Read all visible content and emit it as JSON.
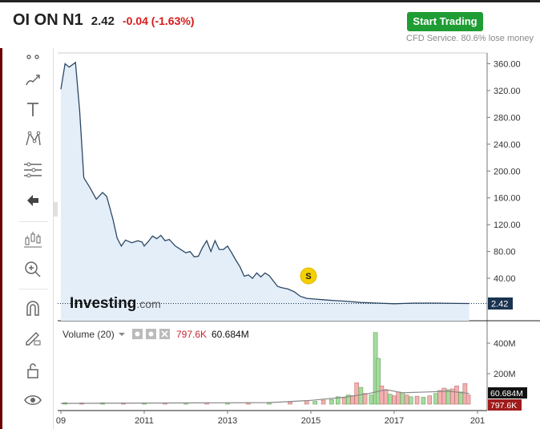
{
  "header": {
    "symbol": "OI ON N1",
    "price": "2.42",
    "change": "-0.04 (-1.63%)",
    "cta_label": "Start Trading",
    "disclaimer": "CFD Service. 80.6% lose money"
  },
  "toolbar": {
    "tools": [
      "crosshair-icon",
      "brush-icon",
      "text-icon",
      "pattern-icon",
      "fibonacci-icon",
      "back-arrow-icon",
      "candles-icon",
      "zoom-in-icon",
      "magnet-icon",
      "lock-pen-icon",
      "unlock-icon",
      "eye-icon"
    ]
  },
  "colors": {
    "line": "#2b4763",
    "area": "#e3eef9",
    "up": "#a7dba0",
    "down": "#f0b2b2",
    "accent": "#1f9d34",
    "neg": "#d91a1a"
  },
  "chart_data": {
    "type": "area",
    "logo": "Investing.com",
    "marker_label": "S",
    "last_price_label": "2.42",
    "y_ticks": [
      "360.00",
      "320.00",
      "280.00",
      "240.00",
      "200.00",
      "160.00",
      "120.00",
      "80.00",
      "40.00"
    ],
    "ylim": [
      0,
      370
    ],
    "x_ticks": [
      "09",
      "2011",
      "2013",
      "2015",
      "2017",
      "201"
    ],
    "price_series": {
      "x": [
        2009.0,
        2009.1,
        2009.2,
        2009.35,
        2009.45,
        2009.55,
        2009.7,
        2009.85,
        2010.0,
        2010.1,
        2010.25,
        2010.35,
        2010.45,
        2010.55,
        2010.7,
        2010.85,
        2010.95,
        2011.0,
        2011.1,
        2011.2,
        2011.3,
        2011.4,
        2011.5,
        2011.6,
        2011.75,
        2011.9,
        2012.0,
        2012.1,
        2012.2,
        2012.3,
        2012.4,
        2012.5,
        2012.6,
        2012.7,
        2012.8,
        2012.9,
        2013.0,
        2013.1,
        2013.2,
        2013.3,
        2013.4,
        2013.5,
        2013.6,
        2013.7,
        2013.8,
        2013.9,
        2014.0,
        2014.1,
        2014.2,
        2014.3,
        2014.45,
        2014.6,
        2014.75,
        2014.9,
        2015.1,
        2015.3,
        2015.5,
        2015.8,
        2016.2,
        2016.6,
        2017.0,
        2017.5,
        2018.0,
        2018.5,
        2018.8
      ],
      "values": [
        322,
        360,
        355,
        362,
        290,
        190,
        175,
        158,
        168,
        162,
        128,
        100,
        88,
        97,
        93,
        96,
        94,
        88,
        95,
        103,
        99,
        104,
        96,
        98,
        88,
        82,
        78,
        80,
        72,
        73,
        86,
        96,
        80,
        96,
        83,
        83,
        88,
        78,
        67,
        57,
        43,
        45,
        40,
        48,
        42,
        48,
        44,
        36,
        28,
        26,
        24,
        20,
        13,
        10,
        9,
        8,
        7,
        6,
        4,
        3,
        2,
        3,
        3,
        2.5,
        2.42
      ],
      "unit_note": ""
    },
    "volume_panel": {
      "label": "Volume (20)",
      "values_shown": [
        "797.6K",
        "60.684M"
      ],
      "y_ticks": [
        "400M",
        "200M"
      ],
      "last_volume_label": "797.6K",
      "ma_label": "60.684M",
      "bars": [
        {
          "x": 2009.1,
          "v": 10,
          "up": true
        },
        {
          "x": 2009.5,
          "v": 8,
          "up": false
        },
        {
          "x": 2010.0,
          "v": 9,
          "up": true
        },
        {
          "x": 2010.5,
          "v": 8,
          "up": false
        },
        {
          "x": 2011.0,
          "v": 9,
          "up": true
        },
        {
          "x": 2011.5,
          "v": 8,
          "up": false
        },
        {
          "x": 2012.0,
          "v": 9,
          "up": true
        },
        {
          "x": 2012.5,
          "v": 10,
          "up": false
        },
        {
          "x": 2013.0,
          "v": 9,
          "up": true
        },
        {
          "x": 2013.5,
          "v": 10,
          "up": false
        },
        {
          "x": 2014.0,
          "v": 12,
          "up": true
        },
        {
          "x": 2014.5,
          "v": 14,
          "up": false
        },
        {
          "x": 2014.9,
          "v": 22,
          "up": false
        },
        {
          "x": 2015.1,
          "v": 18,
          "up": true
        },
        {
          "x": 2015.3,
          "v": 26,
          "up": false
        },
        {
          "x": 2015.5,
          "v": 30,
          "up": true
        },
        {
          "x": 2015.65,
          "v": 48,
          "up": true
        },
        {
          "x": 2015.8,
          "v": 42,
          "up": false
        },
        {
          "x": 2015.9,
          "v": 60,
          "up": true
        },
        {
          "x": 2016.0,
          "v": 55,
          "up": false
        },
        {
          "x": 2016.1,
          "v": 140,
          "up": false
        },
        {
          "x": 2016.2,
          "v": 110,
          "up": true
        },
        {
          "x": 2016.3,
          "v": 70,
          "up": false
        },
        {
          "x": 2016.45,
          "v": 60,
          "up": true
        },
        {
          "x": 2016.55,
          "v": 470,
          "up": true
        },
        {
          "x": 2016.62,
          "v": 300,
          "up": true
        },
        {
          "x": 2016.7,
          "v": 120,
          "up": false
        },
        {
          "x": 2016.8,
          "v": 90,
          "up": false
        },
        {
          "x": 2016.9,
          "v": 65,
          "up": true
        },
        {
          "x": 2017.0,
          "v": 55,
          "up": false
        },
        {
          "x": 2017.1,
          "v": 80,
          "up": false
        },
        {
          "x": 2017.2,
          "v": 75,
          "up": true
        },
        {
          "x": 2017.3,
          "v": 60,
          "up": false
        },
        {
          "x": 2017.4,
          "v": 48,
          "up": true
        },
        {
          "x": 2017.55,
          "v": 52,
          "up": false
        },
        {
          "x": 2017.7,
          "v": 45,
          "up": true
        },
        {
          "x": 2017.85,
          "v": 55,
          "up": false
        },
        {
          "x": 2018.0,
          "v": 70,
          "up": true
        },
        {
          "x": 2018.1,
          "v": 90,
          "up": false
        },
        {
          "x": 2018.2,
          "v": 105,
          "up": false
        },
        {
          "x": 2018.3,
          "v": 95,
          "up": true
        },
        {
          "x": 2018.4,
          "v": 100,
          "up": false
        },
        {
          "x": 2018.5,
          "v": 120,
          "up": false
        },
        {
          "x": 2018.6,
          "v": 80,
          "up": true
        },
        {
          "x": 2018.7,
          "v": 135,
          "up": false
        },
        {
          "x": 2018.78,
          "v": 60,
          "up": false
        }
      ],
      "ma": [
        [
          2009.0,
          5
        ],
        [
          2014.0,
          10
        ],
        [
          2015.0,
          25
        ],
        [
          2015.8,
          45
        ],
        [
          2016.4,
          70
        ],
        [
          2016.8,
          95
        ],
        [
          2017.2,
          75
        ],
        [
          2017.8,
          80
        ],
        [
          2018.3,
          85
        ],
        [
          2018.8,
          70
        ]
      ],
      "ylim": [
        0,
        500
      ]
    }
  }
}
